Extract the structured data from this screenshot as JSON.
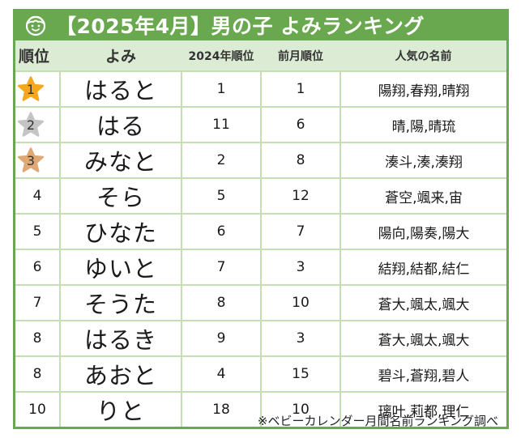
{
  "title": "【2025年4月】男の子 よみランキング",
  "title_icon": "boy-face-icon",
  "colors": {
    "title_bg": "#6aa84f",
    "header_bg": "#dcebd3",
    "grid": "#c4dfb6",
    "gold": "#f5a81c",
    "silver": "#c4c4c4",
    "bronze": "#dfa874"
  },
  "headers": {
    "rank": "順位",
    "yomi": "よみ",
    "rank_2024": "2024年順位",
    "prev_month": "前月順位",
    "popular_names": "人気の名前"
  },
  "rows": [
    {
      "rank": "1",
      "medal": "gold",
      "yomi": "はると",
      "rank_2024": "1",
      "prev_month": "1",
      "names": "陽翔,春翔,晴翔"
    },
    {
      "rank": "2",
      "medal": "silver",
      "yomi": "はる",
      "rank_2024": "11",
      "prev_month": "6",
      "names": "晴,陽,晴琉"
    },
    {
      "rank": "3",
      "medal": "bronze",
      "yomi": "みなと",
      "rank_2024": "2",
      "prev_month": "8",
      "names": "湊斗,湊,湊翔"
    },
    {
      "rank": "4",
      "medal": "",
      "yomi": "そら",
      "rank_2024": "5",
      "prev_month": "12",
      "names": "蒼空,颯来,宙"
    },
    {
      "rank": "5",
      "medal": "",
      "yomi": "ひなた",
      "rank_2024": "6",
      "prev_month": "7",
      "names": "陽向,陽奏,陽大"
    },
    {
      "rank": "6",
      "medal": "",
      "yomi": "ゆいと",
      "rank_2024": "7",
      "prev_month": "3",
      "names": "結翔,結都,結仁"
    },
    {
      "rank": "7",
      "medal": "",
      "yomi": "そうた",
      "rank_2024": "8",
      "prev_month": "10",
      "names": "蒼大,颯太,颯大"
    },
    {
      "rank": "8",
      "medal": "",
      "yomi": "はるき",
      "rank_2024": "9",
      "prev_month": "3",
      "names": "蒼大,颯太,颯大"
    },
    {
      "rank": "8",
      "medal": "",
      "yomi": "あおと",
      "rank_2024": "4",
      "prev_month": "15",
      "names": "碧斗,蒼翔,碧人"
    },
    {
      "rank": "10",
      "medal": "",
      "yomi": "りと",
      "rank_2024": "18",
      "prev_month": "10",
      "names": "璃叶,莉都,理仁"
    }
  ],
  "footer": "※ベビーカレンダー月間名前ランキング調べ"
}
